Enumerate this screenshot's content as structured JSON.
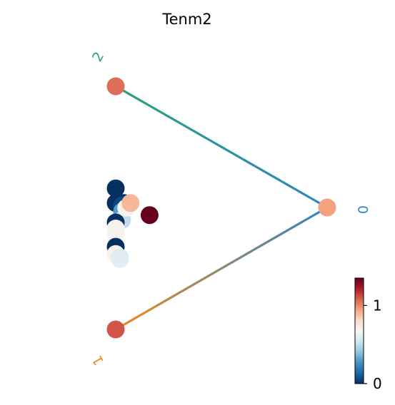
{
  "chart_data": {
    "type": "scatter",
    "title": "Tenm2",
    "vertices": [
      {
        "label": "2",
        "color": "#2ca07a",
        "value": 1.05
      },
      {
        "label": "0",
        "color": "#2e86c1",
        "value": 0.95
      },
      {
        "label": "1",
        "color": "#f08a24",
        "value": 1.1
      }
    ],
    "points": [
      {
        "x": 0.0,
        "y": 0.58,
        "value": 0.0
      },
      {
        "x": 0.0,
        "y": 0.52,
        "value": 0.0
      },
      {
        "x": 0.04,
        "y": 0.52,
        "value": 0.0
      },
      {
        "x": 0.03,
        "y": 0.51,
        "value": 0.05
      },
      {
        "x": 0.03,
        "y": 0.51,
        "value": 0.05
      },
      {
        "x": 0.03,
        "y": 0.485,
        "value": 0.3
      },
      {
        "x": 0.03,
        "y": 0.45,
        "value": 0.5
      },
      {
        "x": 0.0,
        "y": 0.44,
        "value": 0.0
      },
      {
        "x": 0.0,
        "y": 0.415,
        "value": 0.7
      },
      {
        "x": 0.0,
        "y": 0.39,
        "value": 0.7
      },
      {
        "x": 0.0,
        "y": 0.34,
        "value": 0.0
      },
      {
        "x": 0.0,
        "y": 0.31,
        "value": 0.7
      },
      {
        "x": 0.02,
        "y": 0.295,
        "value": 0.55
      },
      {
        "x": 0.02,
        "y": 0.29,
        "value": 0.6
      },
      {
        "x": 0.05,
        "y": 0.5,
        "value": 0.7
      },
      {
        "x": 0.07,
        "y": 0.52,
        "value": 0.9
      },
      {
        "x": 0.16,
        "y": 0.47,
        "value": 1.35
      }
    ],
    "colorbar": {
      "colormap": "RdBu_r",
      "vmin": 0,
      "vmax": 1.35,
      "ticks": [
        {
          "value": 0,
          "label": "0"
        },
        {
          "value": 1,
          "label": "1"
        }
      ]
    }
  }
}
